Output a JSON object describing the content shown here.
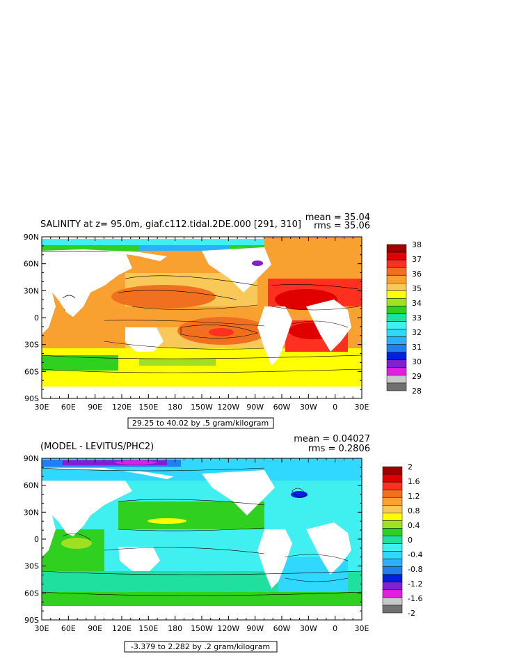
{
  "chart_data": [
    {
      "type": "heatmap",
      "title": "SALINITY at z=   95.0m, giaf.c112.tidal.2DE.000  [291, 310]",
      "stats": {
        "mean": "mean = 35.04",
        "rms": "rms = 35.06"
      },
      "x_ticks": [
        "30E",
        "60E",
        "90E",
        "120E",
        "150E",
        "180",
        "150W",
        "120W",
        "90W",
        "60W",
        "30W",
        "0",
        "30E"
      ],
      "y_ticks": [
        "90N",
        "60N",
        "30N",
        "0",
        "30S",
        "60S",
        "90S"
      ],
      "xlim": [
        30,
        390
      ],
      "ylim": [
        -90,
        90
      ],
      "range_label": "29.25 to 40.02 by .5 gram/kilogram",
      "colorbar": {
        "labels": [
          "38",
          "37",
          "36",
          "35",
          "34",
          "33",
          "32",
          "31",
          "30",
          "29",
          "28"
        ],
        "colors": [
          "#a00000",
          "#e00000",
          "#ff3020",
          "#f07020",
          "#f8a030",
          "#f8c858",
          "#ffff00",
          "#a0e020",
          "#30d020",
          "#20e0a0",
          "#40f0f0",
          "#30d8ff",
          "#2ab0ff",
          "#2080f0",
          "#0020e0",
          "#8020d0",
          "#e020e0",
          "#c8c8c8",
          "#707070"
        ]
      },
      "regions": {
        "arctic": 34.0,
        "north_pacific": 33.5,
        "subtropical_north_pacific": 35.0,
        "subtropical_south_pacific": 36.0,
        "south_pacific_max": 36.5,
        "atlantic_subtropical": 37.0,
        "indian_ocean": 35.0,
        "arabian_sea": 36.5,
        "southern_ocean": 34.0,
        "antarctic_coastal": 34.5,
        "hudson_bay": 30.0
      }
    },
    {
      "type": "heatmap",
      "title": "(MODEL - LEVITUS/PHC2)",
      "stats": {
        "mean": "mean = 0.04027",
        "rms": "rms = 0.2806"
      },
      "x_ticks": [
        "30E",
        "60E",
        "90E",
        "120E",
        "150E",
        "180",
        "150W",
        "120W",
        "90W",
        "60W",
        "30W",
        "0",
        "30E"
      ],
      "y_ticks": [
        "90N",
        "60N",
        "30N",
        "0",
        "30S",
        "60S",
        "90S"
      ],
      "xlim": [
        30,
        390
      ],
      "ylim": [
        -90,
        90
      ],
      "range_label": "-3.379 to 2.282 by .2 gram/kilogram",
      "colorbar": {
        "labels": [
          "2",
          "1.6",
          "1.2",
          "0.8",
          "0.4",
          "0",
          "-0.4",
          "-0.8",
          "-1.2",
          "-1.6",
          "-2"
        ],
        "colors": [
          "#a00000",
          "#e00000",
          "#ff3020",
          "#f07020",
          "#f8a030",
          "#f8c858",
          "#ffff00",
          "#a0e020",
          "#30d020",
          "#20e0a0",
          "#40f0f0",
          "#30d8ff",
          "#2ab0ff",
          "#2080f0",
          "#0020e0",
          "#8020d0",
          "#e020e0",
          "#c8c8c8",
          "#707070"
        ]
      },
      "regions": {
        "arctic": -0.6,
        "arctic_min": -1.6,
        "north_pacific": 0.0,
        "tropical_pacific": 0.2,
        "south_pacific": 0.0,
        "atlantic": 0.0,
        "southern_ocean": 0.0,
        "gulf_stream": -0.8
      }
    }
  ]
}
